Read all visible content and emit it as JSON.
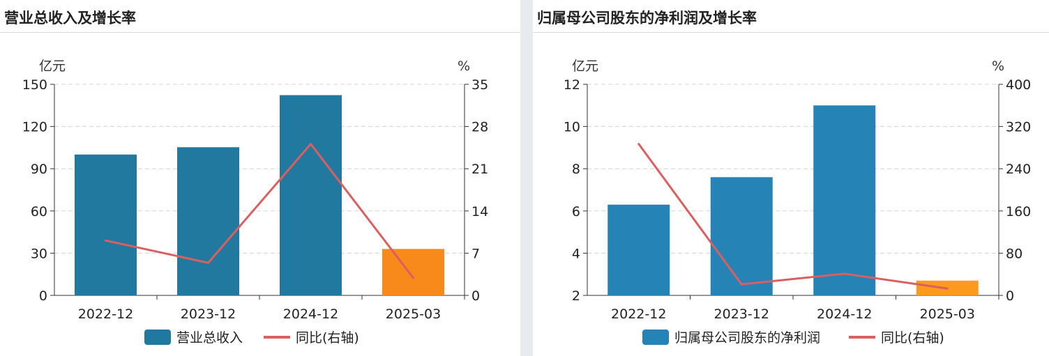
{
  "chart_data": [
    {
      "type": "bar",
      "title": "营业总收入及增长率",
      "categories": [
        "2022-12",
        "2023-12",
        "2024-12",
        "2025-03"
      ],
      "y_unit_left": "亿元",
      "y_unit_right": "%",
      "left_axis": {
        "min": 0,
        "max": 150,
        "ticks": [
          0,
          30,
          60,
          90,
          120,
          150
        ]
      },
      "right_axis": {
        "min": 0,
        "max": 35,
        "ticks": [
          0,
          7,
          14,
          21,
          28,
          35
        ]
      },
      "bar_colors": [
        "#22799f",
        "#22799f",
        "#22799f",
        "#f78a1a"
      ],
      "line_color": "#d9605f",
      "grid": true,
      "legend_position": "bottom-center",
      "series": [
        {
          "name": "营业总收入",
          "type": "bar",
          "axis": "left",
          "values": [
            100.1,
            105.3,
            142.3,
            33.0
          ]
        },
        {
          "name": "同比(右轴)",
          "type": "line",
          "axis": "right",
          "values": [
            9.1,
            5.4,
            25.1,
            2.9
          ]
        }
      ]
    },
    {
      "type": "bar",
      "title": "归属母公司股东的净利润及增长率",
      "categories": [
        "2022-12",
        "2023-12",
        "2024-12",
        "2025-03"
      ],
      "y_unit_left": "亿元",
      "y_unit_right": "%",
      "left_axis": {
        "min": 2,
        "max": 12,
        "ticks": [
          2,
          4,
          6,
          8,
          10,
          12
        ]
      },
      "right_axis": {
        "min": 0,
        "max": 400,
        "ticks": [
          0,
          80,
          160,
          240,
          320,
          400
        ]
      },
      "bar_colors": [
        "#2683b6",
        "#2683b6",
        "#2683b6",
        "#fb9a1f"
      ],
      "line_color": "#d9605f",
      "grid": true,
      "legend_position": "bottom-center",
      "series": [
        {
          "name": "归属母公司股东的净利润",
          "type": "bar",
          "axis": "left",
          "values": [
            6.3,
            7.6,
            11.0,
            2.7
          ]
        },
        {
          "name": "同比(右轴)",
          "type": "line",
          "axis": "right",
          "values": [
            287,
            21,
            41,
            13
          ]
        }
      ]
    }
  ]
}
